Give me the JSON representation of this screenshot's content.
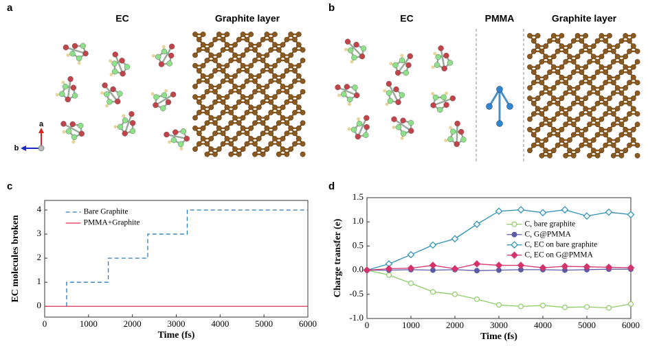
{
  "panels": {
    "a": {
      "label": "a",
      "ec": "EC",
      "graphite": "Graphite layer",
      "axis_a": "a",
      "axis_b": "b"
    },
    "b": {
      "label": "b",
      "ec": "EC",
      "pmma": "PMMA",
      "graphite": "Graphite layer"
    }
  },
  "chart_data": [
    {
      "type": "line",
      "panel": "c",
      "xlabel": "Time (fs)",
      "ylabel": "EC molecules broken",
      "xlim": [
        0,
        6000
      ],
      "ylim": [
        -0.45,
        4.4
      ],
      "xticks": [
        0,
        1000,
        2000,
        3000,
        4000,
        5000,
        6000
      ],
      "yticks": [
        0,
        1,
        2,
        3,
        4
      ],
      "legend": "upper left",
      "series": [
        {
          "name": "Bare Graphite",
          "color": "#2b7bb9",
          "dash": true,
          "x": [
            500,
            500,
            1450,
            1450,
            2350,
            2350,
            3250,
            3250,
            6000
          ],
          "values": [
            0,
            1,
            1,
            2,
            2,
            3,
            3,
            4,
            4
          ]
        },
        {
          "name": "PMMA+Graphite",
          "color": "#d9304f",
          "dash": false,
          "x": [
            0,
            6000
          ],
          "values": [
            0,
            0
          ]
        }
      ]
    },
    {
      "type": "line",
      "panel": "d",
      "xlabel": "Time (fs)",
      "ylabel": "Charge transfer (e)",
      "xlim": [
        0,
        6000
      ],
      "ylim": [
        -1,
        1.5
      ],
      "xticks": [
        0,
        1000,
        2000,
        3000,
        4000,
        5000,
        6000
      ],
      "yticks": [
        {
          "value": -1,
          "label": "-1.0"
        },
        -0.5,
        {
          "value": 0,
          "label": "0.0"
        },
        0.5,
        {
          "value": 1,
          "label": "1.0"
        },
        1.5
      ],
      "legend": "center right",
      "x": [
        0,
        500,
        1000,
        1500,
        2000,
        2500,
        3000,
        3500,
        4000,
        4500,
        5000,
        5500,
        6000
      ],
      "series": [
        {
          "name": "C, bare graphite",
          "color": "#8ccc66",
          "marker": "open-circle",
          "values": [
            0,
            -0.1,
            -0.27,
            -0.45,
            -0.5,
            -0.6,
            -0.72,
            -0.75,
            -0.73,
            -0.77,
            -0.76,
            -0.78,
            -0.7
          ]
        },
        {
          "name": "C, G@PMMA",
          "color": "#5b5ba8",
          "marker": "filled-circle",
          "values": [
            0,
            0,
            0.01,
            0,
            0.01,
            -0.01,
            0,
            0.01,
            0.01,
            0,
            0.01,
            0.02,
            0.02
          ]
        },
        {
          "name": "C, EC on bare graphite",
          "color": "#2a8fb3",
          "marker": "open-diamond",
          "values": [
            0,
            0.13,
            0.32,
            0.52,
            0.65,
            0.95,
            1.22,
            1.25,
            1.19,
            1.25,
            1.12,
            1.2,
            1.15
          ]
        },
        {
          "name": "C, EC on G@PMMA",
          "color": "#d6336c",
          "marker": "filled-diamond",
          "values": [
            0,
            0.03,
            0.04,
            0.1,
            0.03,
            0.13,
            0.1,
            0.1,
            0.05,
            0.08,
            0.07,
            0.06,
            0.05
          ]
        }
      ]
    }
  ]
}
